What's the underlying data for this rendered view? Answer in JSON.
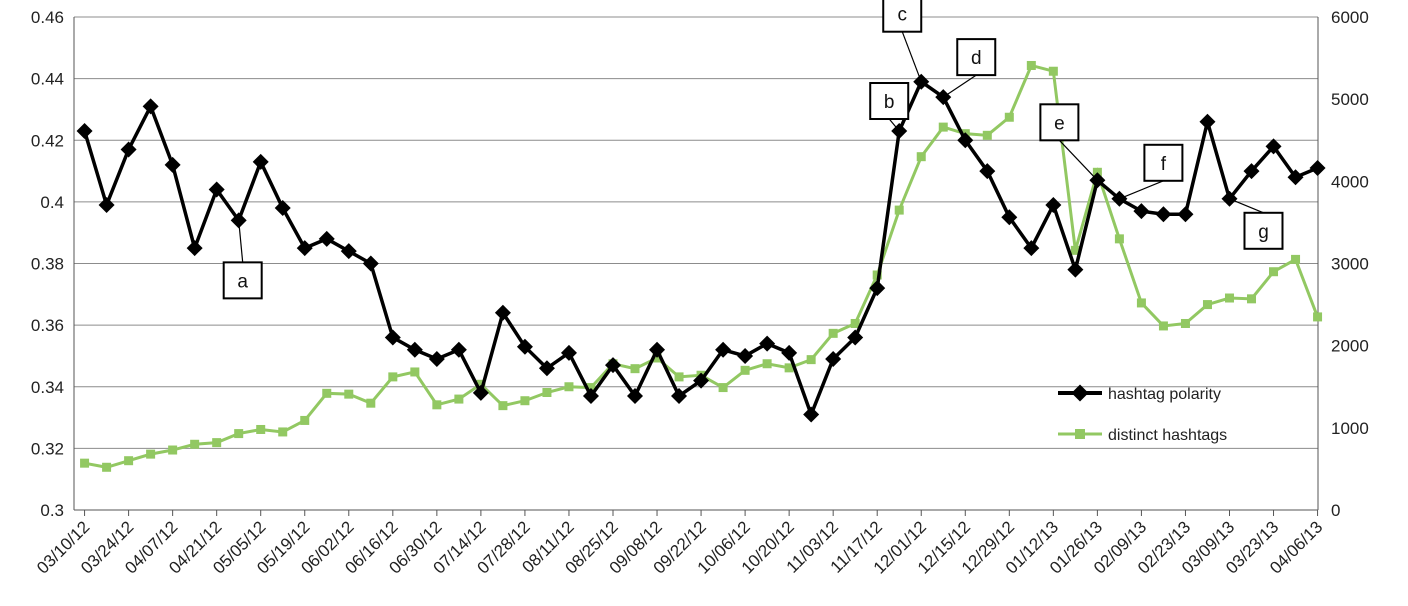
{
  "chart_data": {
    "type": "line",
    "title": "",
    "xlabel": "",
    "ylabel": "",
    "y2label": "",
    "grid": true,
    "legend_position": "right-center",
    "colors": {
      "polarity": "#000000",
      "hashtags": "#92c862",
      "grid": "#8c8c8c",
      "axis": "#555555"
    },
    "ylim": [
      0.3,
      0.46
    ],
    "y_ticks": [
      "0.3",
      "0.32",
      "0.34",
      "0.36",
      "0.38",
      "0.4",
      "0.42",
      "0.44",
      "0.46"
    ],
    "y2lim": [
      0,
      6000
    ],
    "y2_ticks": [
      "0",
      "1000",
      "2000",
      "3000",
      "4000",
      "5000",
      "6000"
    ],
    "x_tick_labels": [
      "03/10/12",
      "03/24/12",
      "04/07/12",
      "04/21/12",
      "05/05/12",
      "05/19/12",
      "06/02/12",
      "06/16/12",
      "06/30/12",
      "07/14/12",
      "07/28/12",
      "08/11/12",
      "08/25/12",
      "09/08/12",
      "09/22/12",
      "10/06/12",
      "10/20/12",
      "11/03/12",
      "11/17/12",
      "12/01/12",
      "12/15/12",
      "12/29/12",
      "01/12/13",
      "01/26/13",
      "02/09/13",
      "02/23/13",
      "03/09/13",
      "03/23/13",
      "04/06/13"
    ],
    "x": [
      "03/10/12",
      "03/17/12",
      "03/24/12",
      "03/31/12",
      "04/07/12",
      "04/14/12",
      "04/21/12",
      "04/28/12",
      "05/05/12",
      "05/12/12",
      "05/19/12",
      "05/26/12",
      "06/02/12",
      "06/09/12",
      "06/16/12",
      "06/23/12",
      "06/30/12",
      "07/07/12",
      "07/14/12",
      "07/21/12",
      "07/28/12",
      "08/04/12",
      "08/11/12",
      "08/18/12",
      "08/25/12",
      "09/01/12",
      "09/08/12",
      "09/15/12",
      "09/22/12",
      "09/29/12",
      "10/06/12",
      "10/13/12",
      "10/20/12",
      "10/27/12",
      "11/03/12",
      "11/10/12",
      "11/17/12",
      "11/24/12",
      "12/01/12",
      "12/08/12",
      "12/15/12",
      "12/22/12",
      "12/29/12",
      "01/05/13",
      "01/12/13",
      "01/19/13",
      "01/26/13",
      "02/02/13",
      "02/09/13",
      "02/16/13",
      "02/23/13",
      "03/02/13",
      "03/09/13",
      "03/16/13",
      "03/23/13",
      "03/30/13",
      "04/06/13"
    ],
    "series": [
      {
        "name": "hashtag polarity",
        "axis": "left",
        "marker": "diamond",
        "values": [
          0.423,
          0.399,
          0.417,
          0.431,
          0.412,
          0.385,
          0.404,
          0.394,
          0.413,
          0.398,
          0.385,
          0.388,
          0.384,
          0.38,
          0.356,
          0.352,
          0.349,
          0.352,
          0.338,
          0.364,
          0.353,
          0.346,
          0.351,
          0.337,
          0.347,
          0.337,
          0.352,
          0.337,
          0.342,
          0.352,
          0.35,
          0.354,
          0.351,
          0.331,
          0.349,
          0.356,
          0.372,
          0.423,
          0.439,
          0.434,
          0.42,
          0.41,
          0.395,
          0.385,
          0.399,
          0.378,
          0.407,
          0.401,
          0.397,
          0.396,
          0.396,
          0.426,
          0.401,
          0.41,
          0.418,
          0.408,
          0.411
        ]
      },
      {
        "name": "distinct hashtags",
        "axis": "right",
        "marker": "square",
        "values": [
          570,
          520,
          600,
          680,
          730,
          800,
          820,
          930,
          980,
          950,
          1090,
          1420,
          1410,
          1300,
          1620,
          1680,
          1280,
          1350,
          1530,
          1270,
          1330,
          1430,
          1500,
          1490,
          1780,
          1720,
          1850,
          1620,
          1640,
          1490,
          1700,
          1780,
          1730,
          1830,
          2150,
          2270,
          2860,
          3650,
          4300,
          4660,
          4580,
          4560,
          4780,
          5410,
          5340,
          3160,
          4110,
          3300,
          2520,
          2240,
          2270,
          2500,
          2580,
          2570,
          2900,
          3050,
          2350
        ]
      }
    ],
    "annotations": [
      {
        "label": "a",
        "x": "04/28/12"
      },
      {
        "label": "b",
        "x": "11/24/12"
      },
      {
        "label": "c",
        "x": "12/01/12"
      },
      {
        "label": "d",
        "x": "12/08/12"
      },
      {
        "label": "e",
        "x": "01/26/13"
      },
      {
        "label": "f",
        "x": "02/02/13"
      },
      {
        "label": "g",
        "x": "03/09/13"
      }
    ]
  }
}
